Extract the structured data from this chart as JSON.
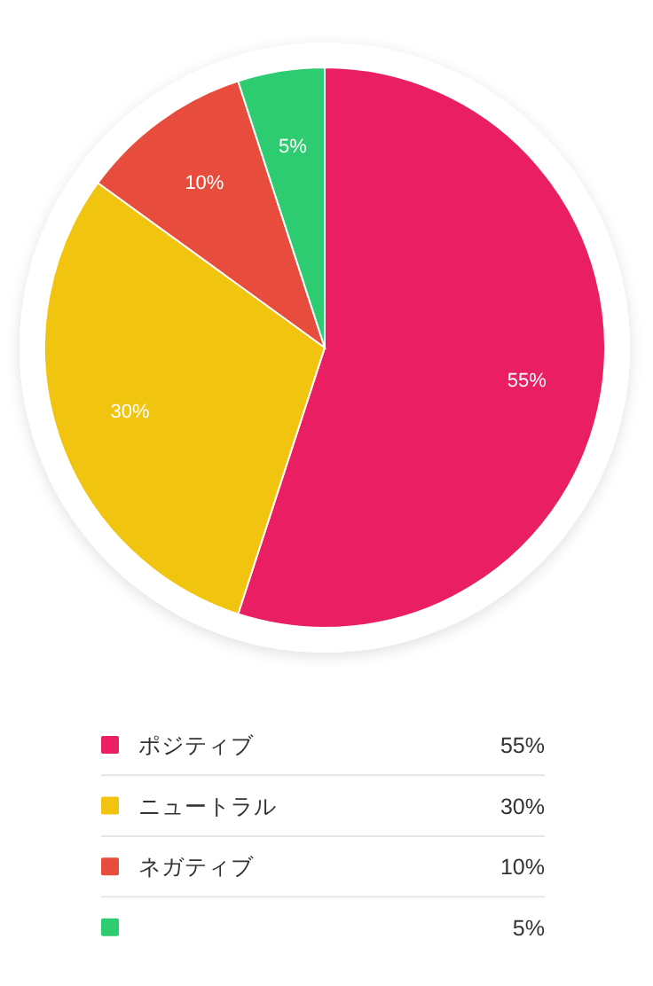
{
  "chart_data": {
    "type": "pie",
    "categories": [
      "ポジティブ",
      "ニュートラル",
      "ネガティブ",
      null
    ],
    "values": [
      55,
      30,
      10,
      5
    ],
    "colors": [
      "#e91e63",
      "#f1c40f",
      "#e74c3c",
      "#2ecc71"
    ],
    "value_labels": [
      "55%",
      "30%",
      "10%",
      "5%"
    ],
    "legend": "bottom"
  }
}
